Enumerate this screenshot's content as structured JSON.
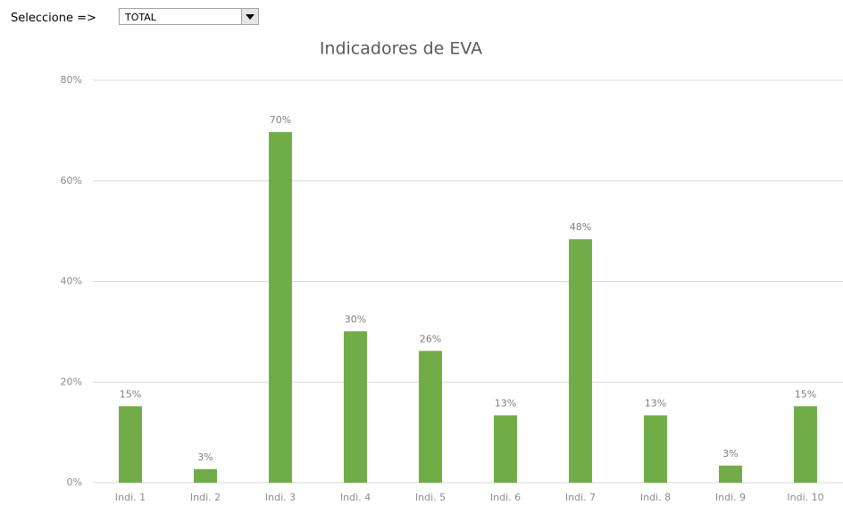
{
  "control": {
    "label": "Seleccione =>",
    "selected": "TOTAL"
  },
  "chart_data": {
    "type": "bar",
    "title": "Indicadores de EVA",
    "categories": [
      "Indi. 1",
      "Indi. 2",
      "Indi. 3",
      "Indi. 4",
      "Indi. 5",
      "Indi. 6",
      "Indi. 7",
      "Indi. 8",
      "Indi. 9",
      "Indi. 10"
    ],
    "values": [
      15.2,
      2.7,
      69.7,
      30.1,
      26.2,
      13.4,
      48.4,
      13.4,
      3.4,
      15.2
    ],
    "value_labels": [
      "15%",
      "3%",
      "70%",
      "30%",
      "26%",
      "13%",
      "48%",
      "13%",
      "3%",
      "15%"
    ],
    "color": "#70ad47",
    "ylim": [
      0,
      80
    ],
    "yticks": [
      {
        "value": 0,
        "label": "0%"
      },
      {
        "value": 20,
        "label": "20%"
      },
      {
        "value": 40,
        "label": "40%"
      },
      {
        "value": 60,
        "label": "60%"
      },
      {
        "value": 80,
        "label": "80%"
      }
    ],
    "grid": true
  }
}
